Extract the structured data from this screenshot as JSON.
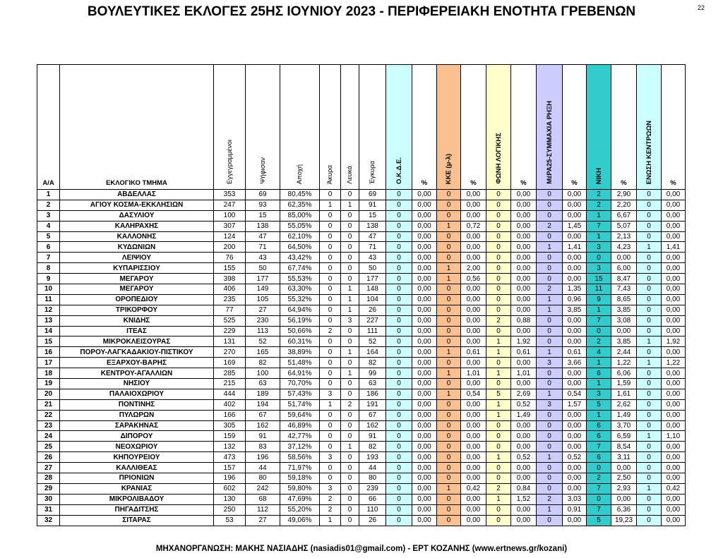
{
  "header": {
    "title": "ΒΟΥΛΕΥΤΙΚΕΣ ΕΚΛΟΓΕΣ 25ΗΣ ΙΟΥΝΙΟΥ 2023 - ΠΕΡΙΦΕΡΕΙΑΚΗ ΕΝΟΤΗΤΑ ΓΡΕΒΕΝΩΝ",
    "page_number": "22"
  },
  "table": {
    "columns": [
      "Α/Α",
      "ΕΚΛΟΓΙΚΟ ΤΜΗΜΑ",
      "Εγγεγραμμένοι",
      "Ψήφισαν",
      "Αποχή",
      "Άκυρα",
      "Λευκά",
      "Έγκυρα",
      "Ο.Κ.Δ.Ε.",
      "%",
      "ΚΚΕ (μ-λ)",
      "%",
      "ΦΩΝΗ ΛΟΓΙΚΗΣ",
      "%",
      "ΜέΡΑ25-ΣΥΜΜΑΧΙΑ ΡΗΞΗ",
      "%",
      "ΝΙΚΗ",
      "%",
      "ΕΝΩΣΗ ΚΕΝΤΡΩΩΝ",
      "%"
    ],
    "rows": [
      [
        "1",
        "ΑΒΔΕΛΛΑΣ",
        "353",
        "69",
        "80,45%",
        "0",
        "0",
        "69",
        "0",
        "0,00",
        "0",
        "0,00",
        "0",
        "0,00",
        "0",
        "0,00",
        "2",
        "2,90",
        "0",
        "0,00"
      ],
      [
        "2",
        "ΑΓΙΟΥ ΚΟΣΜΑ-ΕΚΚΛΗΣΙΩΝ",
        "247",
        "93",
        "62,35%",
        "1",
        "1",
        "91",
        "0",
        "0,00",
        "0",
        "0,00",
        "0",
        "0,00",
        "0",
        "0,00",
        "2",
        "2,20",
        "0",
        "0,00"
      ],
      [
        "3",
        "ΔΑΣΥΛΙΟΥ",
        "100",
        "15",
        "85,00%",
        "0",
        "0",
        "15",
        "0",
        "0,00",
        "0",
        "0,00",
        "0",
        "0,00",
        "0",
        "0,00",
        "1",
        "6,67",
        "0",
        "0,00"
      ],
      [
        "4",
        "ΚΑΛΗΡΑΧΗΣ",
        "307",
        "138",
        "55,05%",
        "0",
        "0",
        "138",
        "0",
        "0,00",
        "1",
        "0,72",
        "0",
        "0,00",
        "2",
        "1,45",
        "7",
        "5,07",
        "0",
        "0,00"
      ],
      [
        "5",
        "ΚΑΛΛΟΝΗΣ",
        "124",
        "47",
        "62,10%",
        "0",
        "0",
        "47",
        "0",
        "0,00",
        "0",
        "0,00",
        "0",
        "0,00",
        "0",
        "0,00",
        "1",
        "2,13",
        "0",
        "0,00"
      ],
      [
        "6",
        "ΚΥΔΩΝΙΩΝ",
        "200",
        "71",
        "64,50%",
        "0",
        "0",
        "71",
        "0",
        "0,00",
        "0",
        "0,00",
        "0",
        "0,00",
        "1",
        "1,41",
        "3",
        "4,23",
        "1",
        "1,41"
      ],
      [
        "7",
        "ΛΕΙΨΙΟΥ",
        "76",
        "43",
        "43,42%",
        "0",
        "0",
        "43",
        "0",
        "0,00",
        "0",
        "0,00",
        "0",
        "0,00",
        "0",
        "0,00",
        "0",
        "0,00",
        "0",
        "0,00"
      ],
      [
        "8",
        "ΚΥΠΑΡΙΣΣΙΟΥ",
        "155",
        "50",
        "67,74%",
        "0",
        "0",
        "50",
        "0",
        "0,00",
        "1",
        "2,00",
        "0",
        "0,00",
        "0",
        "0,00",
        "3",
        "6,00",
        "0",
        "0,00"
      ],
      [
        "9",
        "ΜΕΓΑΡΟΥ",
        "398",
        "177",
        "55,53%",
        "0",
        "0",
        "177",
        "0",
        "0,00",
        "1",
        "0,56",
        "0",
        "0,00",
        "0",
        "0,00",
        "15",
        "8,47",
        "0",
        "0,00"
      ],
      [
        "10",
        "ΜΕΓΑΡΟΥ",
        "406",
        "149",
        "63,30%",
        "0",
        "1",
        "148",
        "0",
        "0,00",
        "0",
        "0,00",
        "0",
        "0,00",
        "2",
        "1,35",
        "11",
        "7,43",
        "0",
        "0,00"
      ],
      [
        "11",
        "ΟΡΟΠΕΔΙΟΥ",
        "235",
        "105",
        "55,32%",
        "0",
        "1",
        "104",
        "0",
        "0,00",
        "0",
        "0,00",
        "0",
        "0,00",
        "1",
        "0,96",
        "9",
        "8,65",
        "0",
        "0,00"
      ],
      [
        "12",
        "ΤΡΙΚΟΡΦΟΥ",
        "77",
        "27",
        "64,94%",
        "0",
        "1",
        "26",
        "0",
        "0,00",
        "0",
        "0,00",
        "0",
        "0,00",
        "1",
        "3,85",
        "1",
        "3,85",
        "0",
        "0,00"
      ],
      [
        "13",
        "ΚΝΙΔΗΣ",
        "525",
        "230",
        "56,19%",
        "0",
        "3",
        "227",
        "0",
        "0,00",
        "0",
        "0,00",
        "2",
        "0,88",
        "0",
        "0,00",
        "7",
        "3,08",
        "0",
        "0,00"
      ],
      [
        "14",
        "ΙΤΕΑΣ",
        "229",
        "113",
        "50,66%",
        "2",
        "0",
        "111",
        "0",
        "0,00",
        "0",
        "0,00",
        "0",
        "0,00",
        "0",
        "0,00",
        "0",
        "0,00",
        "0",
        "0,00"
      ],
      [
        "15",
        "ΜΙΚΡΟΚΛΕΙΣΟΥΡΑΣ",
        "131",
        "52",
        "60,31%",
        "0",
        "0",
        "52",
        "0",
        "0,00",
        "0",
        "0,00",
        "1",
        "1,92",
        "0",
        "0,00",
        "2",
        "3,85",
        "1",
        "1,92"
      ],
      [
        "16",
        "ΠΟΡΟΥ-ΛΑΓΚΑΔΑΚΙΟΥ-ΠΙΣΤΙΚΟΥ",
        "270",
        "165",
        "38,89%",
        "0",
        "1",
        "164",
        "0",
        "0,00",
        "1",
        "0,61",
        "1",
        "0,61",
        "1",
        "0,61",
        "4",
        "2,44",
        "0",
        "0,00"
      ],
      [
        "17",
        "ΕΞΑΡΧΟΥ-ΒΑΡΗΣ",
        "169",
        "82",
        "51,48%",
        "0",
        "0",
        "82",
        "0",
        "0,00",
        "0",
        "0,00",
        "0",
        "0,00",
        "3",
        "3,66",
        "1",
        "1,22",
        "1",
        "1,22"
      ],
      [
        "18",
        "ΚΕΝΤΡΟΥ-ΑΓΑΛΛΙΩΝ",
        "285",
        "100",
        "64,91%",
        "0",
        "1",
        "99",
        "0",
        "0,00",
        "1",
        "1,01",
        "1",
        "1,01",
        "0",
        "0,00",
        "6",
        "6,06",
        "0",
        "0,00"
      ],
      [
        "19",
        "ΝΗΣΙΟΥ",
        "215",
        "63",
        "70,70%",
        "0",
        "0",
        "63",
        "0",
        "0,00",
        "0",
        "0,00",
        "0",
        "0,00",
        "0",
        "0,00",
        "1",
        "1,59",
        "0",
        "0,00"
      ],
      [
        "20",
        "ΠΑΛΑΙΟΧΩΡΙΟΥ",
        "444",
        "189",
        "57,43%",
        "3",
        "0",
        "186",
        "0",
        "0,00",
        "1",
        "0,54",
        "5",
        "2,69",
        "1",
        "0,54",
        "3",
        "1,61",
        "0",
        "0,00"
      ],
      [
        "21",
        "ΠΟΝΤΙΝΗΣ",
        "402",
        "194",
        "51,74%",
        "1",
        "2",
        "191",
        "0",
        "0,00",
        "0",
        "0,00",
        "1",
        "0,52",
        "3",
        "1,57",
        "5",
        "2,62",
        "0",
        "0,00"
      ],
      [
        "22",
        "ΠΥΛΩΡΩΝ",
        "166",
        "67",
        "59,64%",
        "0",
        "0",
        "67",
        "0",
        "0,00",
        "0",
        "0,00",
        "1",
        "1,49",
        "0",
        "0,00",
        "1",
        "1,49",
        "0",
        "0,00"
      ],
      [
        "23",
        "ΣΑΡΑΚΗΝΑΣ",
        "305",
        "162",
        "46,89%",
        "0",
        "0",
        "162",
        "0",
        "0,00",
        "0",
        "0,00",
        "0",
        "0,00",
        "0",
        "0,00",
        "6",
        "3,70",
        "0",
        "0,00"
      ],
      [
        "24",
        "ΔΙΠΟΡΟΥ",
        "159",
        "91",
        "42,77%",
        "0",
        "0",
        "91",
        "0",
        "0,00",
        "0",
        "0,00",
        "0",
        "0,00",
        "0",
        "0,00",
        "6",
        "6,59",
        "1",
        "1,10"
      ],
      [
        "25",
        "ΝΕΟΧΩΡΙΟΥ",
        "132",
        "83",
        "37,12%",
        "0",
        "1",
        "82",
        "0",
        "0,00",
        "0",
        "0,00",
        "0",
        "0,00",
        "0",
        "0,00",
        "7",
        "8,54",
        "0",
        "0,00"
      ],
      [
        "26",
        "ΚΗΠΟΥΡΕΙΟΥ",
        "473",
        "196",
        "58,56%",
        "3",
        "0",
        "193",
        "0",
        "0,00",
        "0",
        "0,00",
        "1",
        "0,52",
        "1",
        "0,52",
        "6",
        "3,11",
        "0",
        "0,00"
      ],
      [
        "27",
        "ΚΑΛΛΙΘΕΑΣ",
        "157",
        "44",
        "71,97%",
        "0",
        "0",
        "44",
        "0",
        "0,00",
        "0",
        "0,00",
        "0",
        "0,00",
        "0",
        "0,00",
        "0",
        "0,00",
        "0",
        "0,00"
      ],
      [
        "28",
        "ΠΡΙΟΝΙΩΝ",
        "196",
        "80",
        "59,18%",
        "0",
        "0",
        "80",
        "0",
        "0,00",
        "0",
        "0,00",
        "0",
        "0,00",
        "0",
        "0,00",
        "2",
        "2,50",
        "0",
        "0,00"
      ],
      [
        "29",
        "ΚΡΑΝΙΑΣ",
        "602",
        "242",
        "59,80%",
        "3",
        "0",
        "239",
        "0",
        "0,00",
        "1",
        "0,42",
        "2",
        "0,84",
        "0",
        "0,00",
        "7",
        "2,93",
        "1",
        "0,42"
      ],
      [
        "30",
        "ΜΙΚΡΟΛΙΒΑΔΟΥ",
        "130",
        "68",
        "47,69%",
        "2",
        "0",
        "66",
        "0",
        "0,00",
        "0",
        "0,00",
        "1",
        "1,52",
        "2",
        "3,03",
        "0",
        "0,00",
        "0",
        "0,00"
      ],
      [
        "31",
        "ΠΗΓΑΔΙΤΣΗΣ",
        "250",
        "112",
        "55,20%",
        "2",
        "0",
        "110",
        "0",
        "0,00",
        "0",
        "0,00",
        "0",
        "0,00",
        "1",
        "0,91",
        "7",
        "6,36",
        "0",
        "0,00"
      ],
      [
        "32",
        "ΣΙΤΑΡΑΣ",
        "53",
        "27",
        "49,06%",
        "1",
        "0",
        "26",
        "0",
        "0,00",
        "0",
        "0,00",
        "0",
        "0,00",
        "0",
        "0,00",
        "5",
        "19,23",
        "0",
        "0,00"
      ]
    ]
  },
  "footer": {
    "text": "ΜΗΧΑΝΟΡΓΑΝΩΣΗ: ΜΑΚΗΣ ΝΑΣΙΑΔΗΣ (nasiadis01@gmail.com) - ΕΡΤ ΚΟΖΑΝΗΣ (www.ertnews.gr/kozani)"
  }
}
